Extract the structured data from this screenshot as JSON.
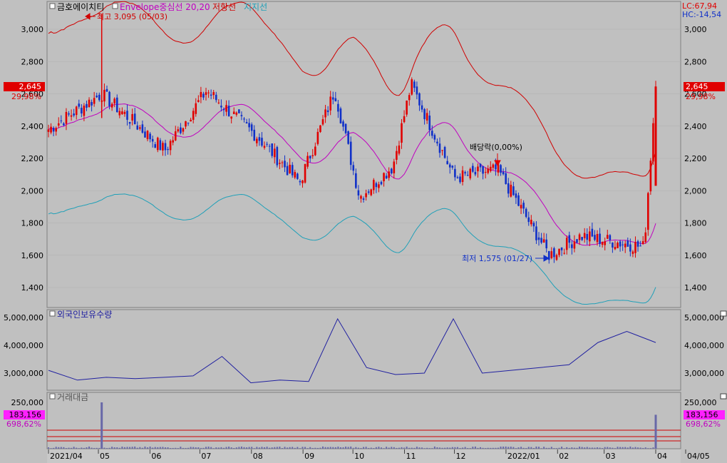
{
  "header": {
    "stock_name": "금호에이치티",
    "indicator_label": "Envelope중심선 20,20",
    "resistance_label": "저항선",
    "support_label": "지지선",
    "lc_text": "LC:67,94",
    "hc_text": "HC:-14,54"
  },
  "panes": {
    "foreign_label": "외국인보유수량",
    "volume_label": "거래대금"
  },
  "annotations": {
    "high": "최고 3,095 (05/03)",
    "low": "최저 1,575 (01/27)",
    "dividend": "배당락(0,00%)"
  },
  "price_tag": {
    "value": "2,645",
    "change": "29,98%"
  },
  "volume_tag": {
    "value": "183,156",
    "change": "698,62%"
  },
  "colors": {
    "up": "#e00000",
    "down": "#1030c8",
    "envelope_mid": "#c000c0",
    "resistance": "#d00000",
    "support": "#20a0b8",
    "foreign_line": "#2020a0",
    "volume_bar": "#6868a8",
    "price_tag_bg": "#e00000",
    "volume_tag_bg": "#ff20ff"
  },
  "chart_data": [
    {
      "type": "candlestick",
      "title": "금호에이치티",
      "ylim": [
        1300,
        3150
      ],
      "yticks": [
        "1,400",
        "1,600",
        "1,800",
        "2,000",
        "2,200",
        "2,400",
        "2,600",
        "2,800",
        "3,000"
      ],
      "x_labels": [
        "2021/04",
        "05",
        "06",
        "07",
        "08",
        "09",
        "10",
        "11",
        "12",
        "2022/01",
        "02",
        "03",
        "04",
        "04/05"
      ],
      "key_points": [
        {
          "date": "2021-04-01",
          "close": 2380
        },
        {
          "date": "2021-05-03",
          "high": 3095,
          "close": 2600
        },
        {
          "date": "2021-06-10",
          "close": 2250
        },
        {
          "date": "2021-07-05",
          "close": 2620
        },
        {
          "date": "2021-08-05",
          "close": 2330
        },
        {
          "date": "2021-08-30",
          "close": 2050
        },
        {
          "date": "2021-09-20",
          "close": 2620
        },
        {
          "date": "2021-10-05",
          "close": 1960
        },
        {
          "date": "2021-10-25",
          "close": 2150
        },
        {
          "date": "2021-11-05",
          "close": 2660
        },
        {
          "date": "2021-12-01",
          "close": 2080
        },
        {
          "date": "2021-12-27",
          "close": 2130
        },
        {
          "date": "2022-01-27",
          "low": 1575,
          "close": 1600
        },
        {
          "date": "2022-02-15",
          "close": 1720
        },
        {
          "date": "2022-03-25",
          "close": 1650
        },
        {
          "date": "2022-04-01",
          "high": 2645,
          "close": 2645
        }
      ],
      "envelope": {
        "period": 20,
        "percent": 20,
        "center_sample": [
          2270,
          2400,
          2470,
          2300,
          2320,
          2350,
          2220,
          2500,
          2380,
          2150,
          2200,
          1900,
          1720,
          1780
        ]
      }
    },
    {
      "type": "line",
      "title": "외국인보유수량",
      "ylim": [
        2500000,
        5200000
      ],
      "yticks": [
        "3,000,000",
        "4,000,000",
        "5,000,000"
      ],
      "values": [
        3100000,
        2750000,
        2850000,
        2800000,
        2850000,
        2900000,
        3600000,
        2650000,
        2750000,
        2700000,
        4950000,
        3200000,
        2950000,
        3000000,
        4950000,
        3000000,
        3100000,
        3200000,
        3300000,
        4100000,
        4500000,
        4100000
      ]
    },
    {
      "type": "bar",
      "title": "거래대금",
      "ylim": [
        0,
        260000
      ],
      "yticks": [
        "250,000"
      ],
      "last_value": 183156,
      "peaks": [
        {
          "date": "2021-05-03",
          "value": 250000
        },
        {
          "date": "2022-04-01",
          "value": 183156
        }
      ]
    }
  ]
}
